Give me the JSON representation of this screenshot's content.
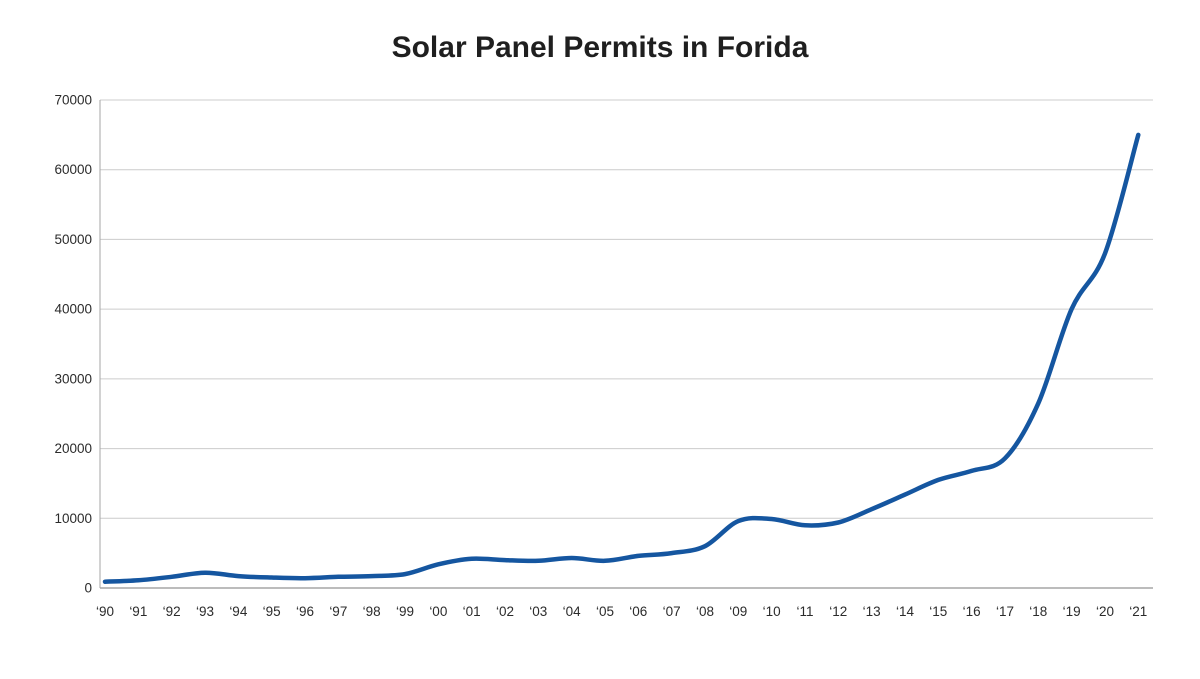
{
  "page": {
    "title": "Solar Panel Permits in Forida"
  },
  "chart_data": {
    "type": "line",
    "title": "Solar Panel Permits in Forida",
    "xlabel": "",
    "ylabel": "",
    "x": [
      1990,
      1991,
      1992,
      1993,
      1994,
      1995,
      1996,
      1997,
      1998,
      1999,
      2000,
      2001,
      2002,
      2003,
      2004,
      2005,
      2006,
      2007,
      2008,
      2009,
      2010,
      2011,
      2012,
      2013,
      2014,
      2015,
      2016,
      2017,
      2018,
      2019,
      2020,
      2021
    ],
    "x_tick_labels": [
      "‘90",
      "‘91",
      "‘92",
      "‘93",
      "‘94",
      "‘95",
      "‘96",
      "‘97",
      "‘98",
      "‘99",
      "‘00",
      "‘01",
      "‘02",
      "‘03",
      "‘04",
      "‘05",
      "‘06",
      "‘07",
      "‘08",
      "‘09",
      "‘10",
      "‘11",
      "‘12",
      "‘13",
      "‘14",
      "‘15",
      "‘16",
      "‘17",
      "‘18",
      "‘19",
      "‘20",
      "‘21"
    ],
    "values": [
      900,
      1100,
      1600,
      2200,
      1700,
      1500,
      1400,
      1600,
      1700,
      2000,
      3400,
      4200,
      4000,
      3900,
      4300,
      3900,
      4600,
      5000,
      6000,
      9600,
      9900,
      9000,
      9400,
      11300,
      13400,
      15500,
      16800,
      18600,
      26500,
      40000,
      48000,
      65000
    ],
    "y_ticks": [
      0,
      10000,
      20000,
      30000,
      40000,
      50000,
      60000,
      70000
    ],
    "ylim": [
      0,
      70000
    ],
    "grid": "horizontal",
    "legend": "none",
    "line_color": "#1556A0",
    "grid_color": "#cccccc",
    "axis_color": "#a6a6a6",
    "label_color": "#2b2b2b",
    "title_color": "#1f1f1f",
    "background_color": "#ffffff"
  }
}
